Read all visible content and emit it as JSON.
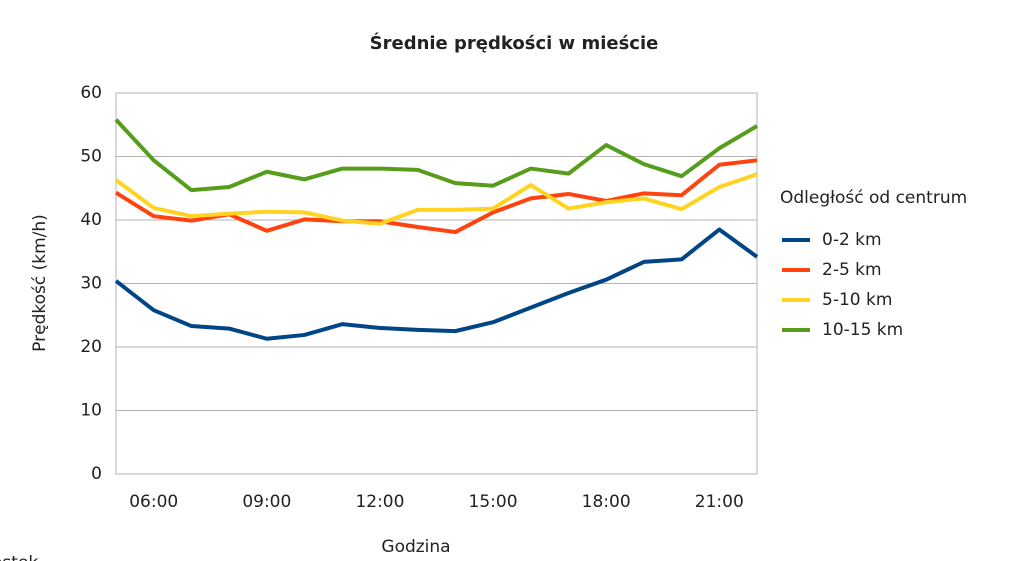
{
  "chart_data": {
    "type": "line",
    "title": "Średnie prędkości w mieście",
    "x_label": "Godzina",
    "y_label": "Prędkość (km/h)",
    "legend_title": "Odległość od centrum",
    "legend": "right",
    "grid": true,
    "categories": [
      null,
      "06:00",
      null,
      null,
      "09:00",
      null,
      null,
      "12:00",
      null,
      null,
      "15:00",
      null,
      null,
      "18:00",
      null,
      null,
      "21:00",
      null
    ],
    "ylim": [
      0,
      60
    ],
    "yticks": [
      0,
      10,
      20,
      30,
      40,
      50,
      60
    ],
    "series": [
      {
        "name": "0-2 km",
        "color": "#004586",
        "values": [
          30.4,
          25.8,
          23.3,
          22.9,
          21.3,
          21.9,
          23.6,
          23.0,
          22.7,
          22.5,
          23.9,
          26.2,
          28.5,
          30.6,
          33.4,
          33.8,
          38.5,
          34.2
        ]
      },
      {
        "name": "2-5 km",
        "color": "#ff420e",
        "values": [
          44.3,
          40.6,
          39.9,
          40.9,
          38.3,
          40.1,
          39.8,
          39.8,
          38.9,
          38.1,
          41.2,
          43.4,
          44.1,
          43.0,
          44.2,
          43.9,
          48.7,
          49.4
        ]
      },
      {
        "name": "5-10 km",
        "color": "#ffd320",
        "values": [
          46.3,
          41.9,
          40.6,
          41.0,
          41.3,
          41.2,
          39.9,
          39.4,
          41.6,
          41.6,
          41.8,
          45.5,
          41.8,
          42.8,
          43.4,
          41.7,
          45.2,
          47.2
        ]
      },
      {
        "name": "10-15 km",
        "color": "#579d1c",
        "values": [
          55.8,
          49.4,
          44.7,
          45.2,
          47.6,
          46.4,
          48.1,
          48.1,
          47.9,
          45.8,
          45.4,
          48.1,
          47.3,
          51.8,
          48.8,
          46.9,
          51.3,
          54.8
        ]
      }
    ]
  },
  "footer_fragment": "ostek"
}
